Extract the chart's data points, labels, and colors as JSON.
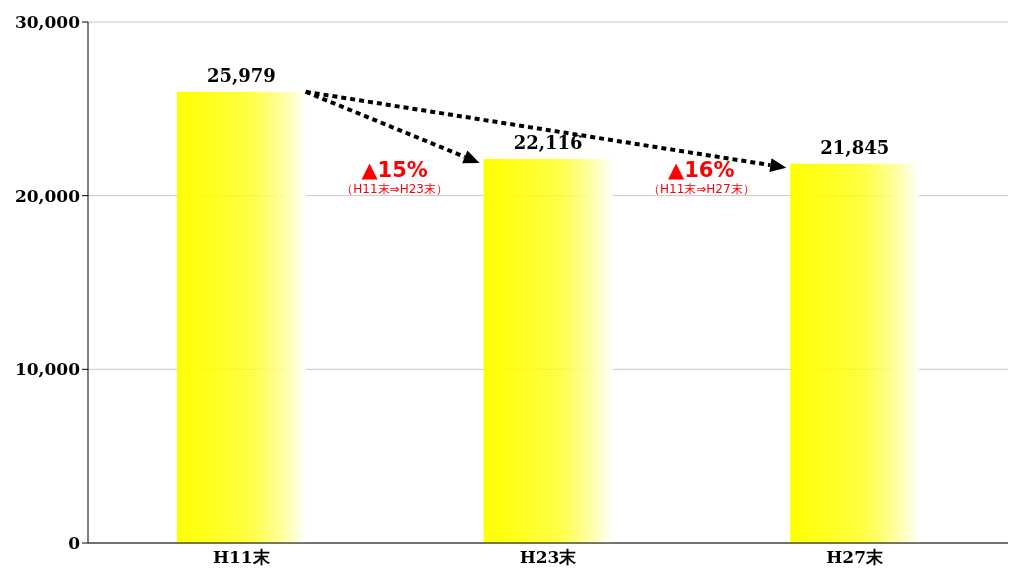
{
  "chart_data": {
    "type": "bar",
    "categories": [
      "H11末",
      "H23末",
      "H27末"
    ],
    "values": [
      25979,
      22116,
      21845
    ],
    "color": "#ffff00",
    "value_labels": [
      "25,979",
      "22,116",
      "21,845"
    ],
    "ylim": [
      0,
      30000
    ],
    "yticks": [
      {
        "value": 0,
        "label": "0"
      },
      {
        "value": 10000,
        "label": "10,000"
      },
      {
        "value": 20000,
        "label": "20,000"
      },
      {
        "value": 30000,
        "label": "30,000"
      }
    ],
    "grid": "y",
    "annotations": [
      "▲15%",
      "（H11末⇒H23末）",
      "▲16%",
      "（H11末⇒H27末）"
    ]
  }
}
